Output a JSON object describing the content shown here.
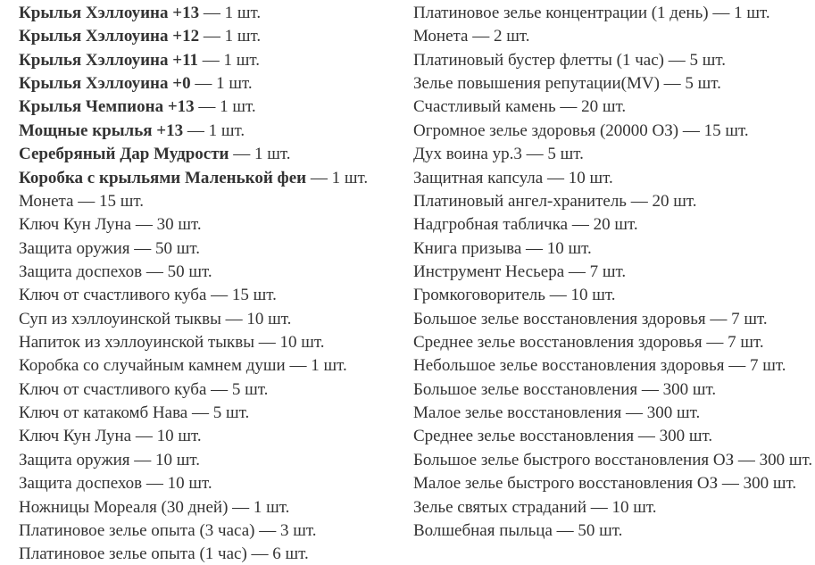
{
  "page": {
    "background_color": "#ffffff",
    "text_color": "#333333",
    "separator": "—",
    "unit": "шт."
  },
  "columns": {
    "left": {
      "items": [
        {
          "name": "Крылья Хэллоуина +13",
          "count": "1",
          "bold": true
        },
        {
          "name": "Крылья Хэллоуина +12",
          "count": "1",
          "bold": true
        },
        {
          "name": "Крылья Хэллоуина +11",
          "count": "1",
          "bold": true
        },
        {
          "name": "Крылья Хэллоуина +0",
          "count": "1",
          "bold": true
        },
        {
          "name": "Крылья Чемпиона +13",
          "count": "1",
          "bold": true
        },
        {
          "name": "Мощные крылья +13",
          "count": "1",
          "bold": true
        },
        {
          "name": "Серебряный Дар Мудрости",
          "count": "1",
          "bold": true
        },
        {
          "name": "Коробка с крыльями Маленькой феи",
          "count": "1",
          "bold": true
        },
        {
          "name": "Монета",
          "count": "15",
          "bold": false
        },
        {
          "name": "Ключ Кун Луна",
          "count": "30",
          "bold": false
        },
        {
          "name": "Защита оружия",
          "count": "50",
          "bold": false
        },
        {
          "name": "Защита доспехов",
          "count": "50",
          "bold": false
        },
        {
          "name": "Ключ от счастливого куба",
          "count": "15",
          "bold": false
        },
        {
          "name": "Суп из хэллоуинской тыквы",
          "count": "10",
          "bold": false
        },
        {
          "name": "Напиток из хэллоуинской тыквы",
          "count": "10",
          "bold": false
        },
        {
          "name": "Коробка со случайным камнем души",
          "count": "1",
          "bold": false
        },
        {
          "name": "Ключ от счастливого куба",
          "count": "5",
          "bold": false
        },
        {
          "name": "Ключ от катакомб Нава",
          "count": "5",
          "bold": false
        },
        {
          "name": "Ключ Кун Луна",
          "count": "10",
          "bold": false
        },
        {
          "name": "Защита оружия",
          "count": "10",
          "bold": false
        },
        {
          "name": "Защита доспехов",
          "count": "10",
          "bold": false
        },
        {
          "name": "Ножницы Мореаля (30 дней)",
          "count": "1",
          "bold": false
        },
        {
          "name": "Платиновое зелье опыта (3 часа)",
          "count": "3",
          "bold": false
        },
        {
          "name": "Платиновое зелье опыта (1 час)",
          "count": "6",
          "bold": false
        }
      ]
    },
    "right": {
      "items": [
        {
          "name": "Платиновое зелье концентрации (1 день)",
          "count": "1",
          "bold": false
        },
        {
          "name": "Монета",
          "count": "2",
          "bold": false
        },
        {
          "name": "Платиновый бустер флетты (1 час)",
          "count": "5",
          "bold": false
        },
        {
          "name": "Зелье повышения репутации(MV)",
          "count": "5",
          "bold": false
        },
        {
          "name": "Счастливый камень",
          "count": "20",
          "bold": false
        },
        {
          "name": "Огромное зелье здоровья (20000 ОЗ)",
          "count": "15",
          "bold": false
        },
        {
          "name": "Дух воина ур.3",
          "count": "5",
          "bold": false
        },
        {
          "name": "Защитная капсула",
          "count": "10",
          "bold": false
        },
        {
          "name": "Платиновый ангел-хранитель",
          "count": "20",
          "bold": false
        },
        {
          "name": "Надгробная табличка",
          "count": "20",
          "bold": false
        },
        {
          "name": "Книга призыва",
          "count": "10",
          "bold": false
        },
        {
          "name": "Инструмент Несьера",
          "count": "7",
          "bold": false
        },
        {
          "name": "Громкоговоритель",
          "count": "10",
          "bold": false
        },
        {
          "name": "Большое зелье восстановления здоровья",
          "count": "7",
          "bold": false
        },
        {
          "name": "Среднее зелье восстановления здоровья",
          "count": "7",
          "bold": false
        },
        {
          "name": "Небольшое зелье восстановления здоровья",
          "count": "7",
          "bold": false
        },
        {
          "name": "Большое зелье восстановления",
          "count": "300",
          "bold": false
        },
        {
          "name": "Малое зелье восстановления",
          "count": "300",
          "bold": false
        },
        {
          "name": "Среднее зелье восстановления",
          "count": "300",
          "bold": false
        },
        {
          "name": "Большое зелье быстрого восстановления ОЗ",
          "count": "300",
          "bold": false
        },
        {
          "name": "Малое зелье быстрого восстановления ОЗ",
          "count": "300",
          "bold": false
        },
        {
          "name": "Зелье святых страданий",
          "count": "10",
          "bold": false
        },
        {
          "name": "Волшебная пыльца",
          "count": "50",
          "bold": false
        }
      ]
    }
  }
}
